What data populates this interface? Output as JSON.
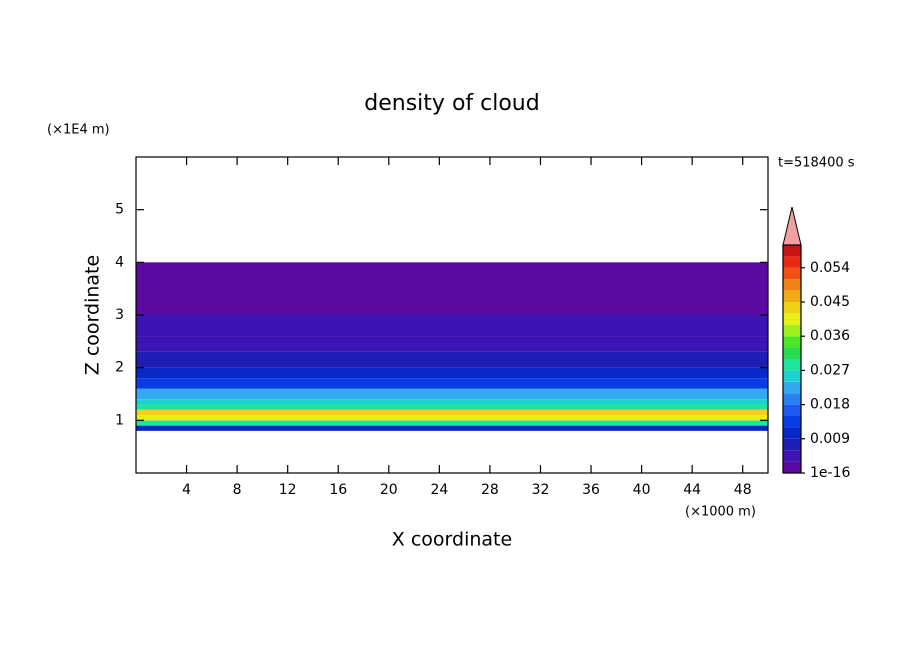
{
  "chart_data": {
    "type": "contour",
    "title": "density of cloud",
    "x_label": "X coordinate",
    "y_label": "Z coordinate",
    "x_unit": "(×1000 m)",
    "y_unit": "(×1E4 m)",
    "annotation": "t=518400 s",
    "xlim": [
      0,
      50
    ],
    "xticks": [
      4,
      8,
      12,
      16,
      20,
      24,
      28,
      32,
      36,
      40,
      44,
      48
    ],
    "ylim": [
      0,
      6
    ],
    "yticks": [
      1,
      2,
      3,
      4,
      5
    ],
    "z_bins": [
      0.8,
      0.9,
      1.0,
      1.1,
      1.2,
      1.3,
      1.4,
      1.6,
      1.8,
      2.0,
      2.3,
      2.6,
      3.0,
      4.0
    ],
    "values": [
      0.012,
      0.03,
      0.04,
      0.045,
      0.03,
      0.025,
      0.022,
      0.015,
      0.012,
      0.009,
      0.006,
      0.004,
      0.001
    ],
    "clim": [
      1e-16,
      0.06
    ],
    "cticks": [
      1e-16,
      0.009,
      0.018,
      0.027,
      0.036,
      0.045,
      0.054
    ],
    "colors": [
      "#5a0aa0",
      "#3c14b4",
      "#1e1eb4",
      "#0a28c8",
      "#0a3ce6",
      "#1e5af0",
      "#2882f0",
      "#32aaf0",
      "#1ed2d2",
      "#1ee6a0",
      "#28dc50",
      "#50e628",
      "#a0f01e",
      "#e6f014",
      "#f0d214",
      "#f0aa14",
      "#f08214",
      "#f05014",
      "#e62814",
      "#c81414"
    ],
    "over_color": "#f0a0a0"
  }
}
